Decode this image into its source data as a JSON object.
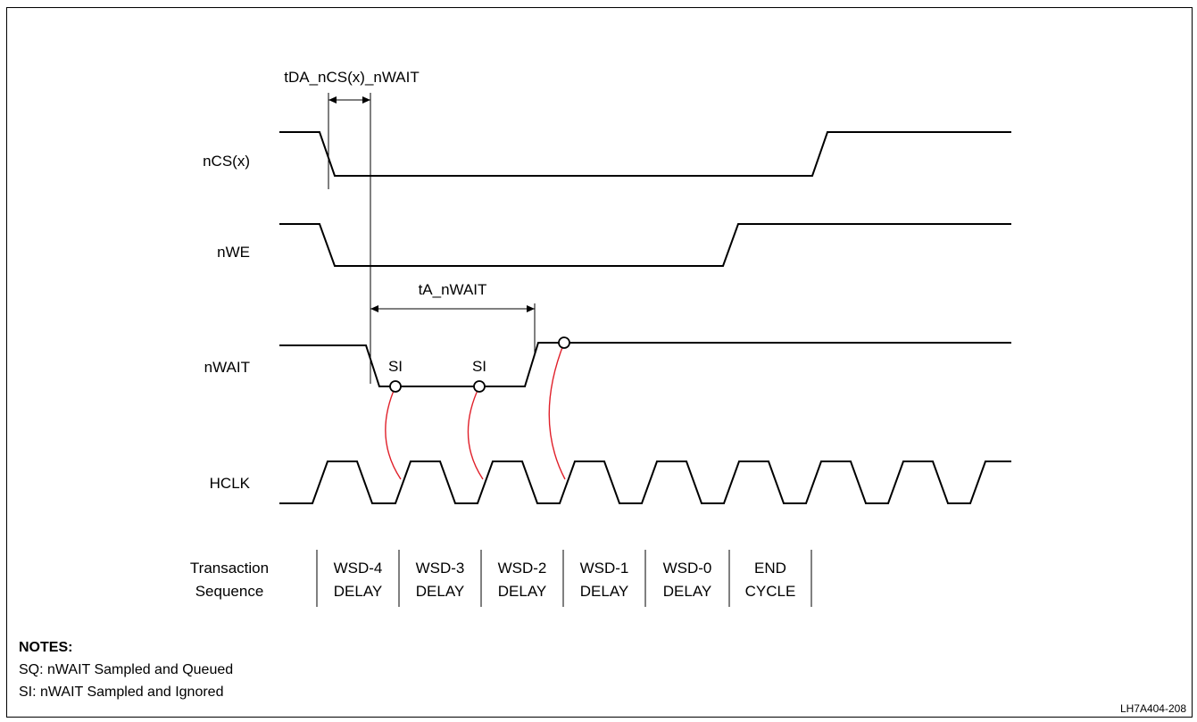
{
  "signals": {
    "ncs": "nCS(x)",
    "nwe": "nWE",
    "nwait": "nWAIT",
    "hclk": "HCLK"
  },
  "timing": {
    "tda": "tDA_nCS(x)_nWAIT",
    "ta": "tA_nWAIT"
  },
  "sample_markers": [
    "SI",
    "SI"
  ],
  "transaction": {
    "label_line1": "Transaction",
    "label_line2": "Sequence",
    "cells": [
      {
        "line1": "WSD-4",
        "line2": "DELAY"
      },
      {
        "line1": "WSD-3",
        "line2": "DELAY"
      },
      {
        "line1": "WSD-2",
        "line2": "DELAY"
      },
      {
        "line1": "WSD-1",
        "line2": "DELAY"
      },
      {
        "line1": "WSD-0",
        "line2": "DELAY"
      },
      {
        "line1": "END",
        "line2": "CYCLE"
      }
    ]
  },
  "notes": {
    "heading": "NOTES:",
    "lines": [
      "SQ: nWAIT Sampled and Queued",
      "SI: nWAIT Sampled and Ignored"
    ]
  },
  "figure_id": "LH7A404-208",
  "colors": {
    "line": "#000000",
    "sample_link": "#e0202a",
    "background": "#ffffff"
  }
}
